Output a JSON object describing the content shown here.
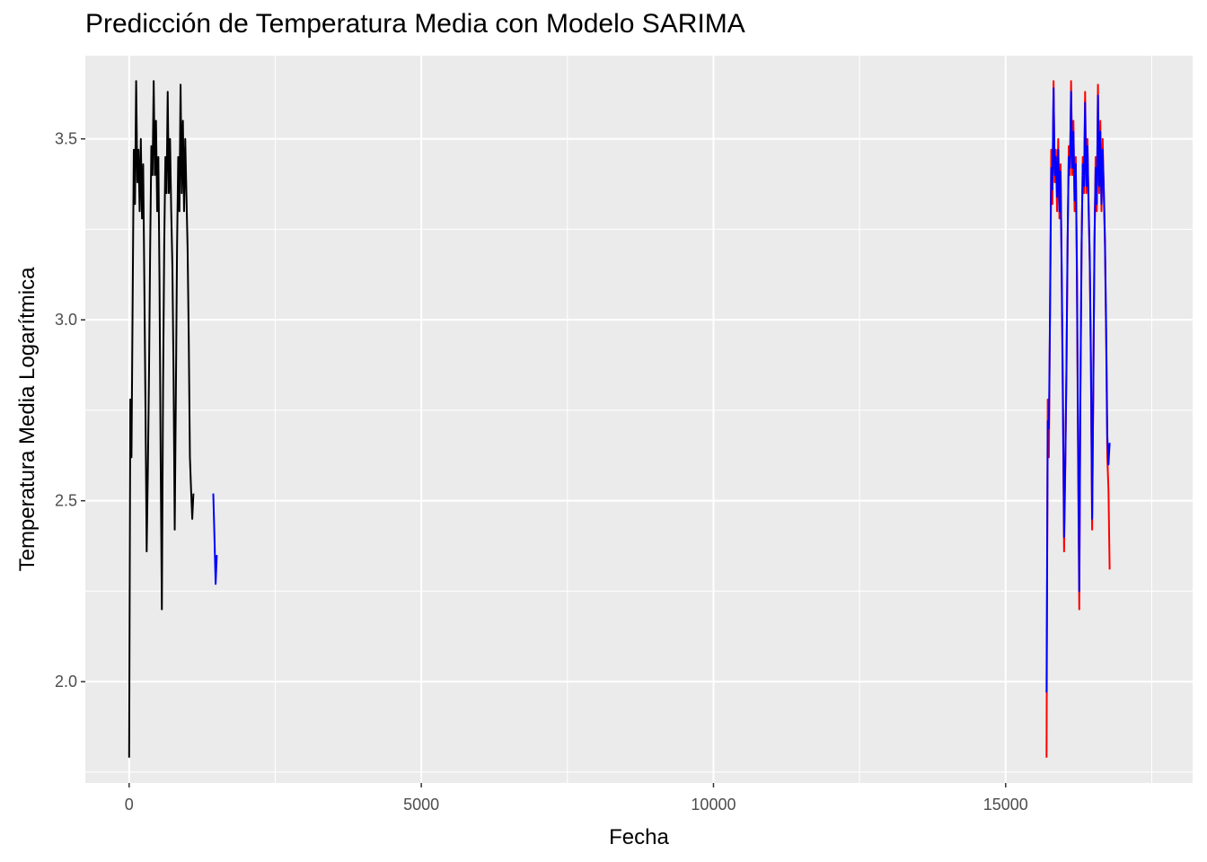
{
  "chart_data": {
    "type": "line",
    "title": "Predicción de Temperatura Media con Modelo SARIMA",
    "xlabel": "Fecha",
    "ylabel": "Temperatura Media Logarítmica",
    "xlim": [
      -750,
      18200
    ],
    "ylim": [
      1.72,
      3.73
    ],
    "x_ticks": [
      0,
      5000,
      10000,
      15000
    ],
    "x_tick_labels": [
      "0",
      "5000",
      "10000",
      "15000"
    ],
    "y_ticks": [
      2.0,
      2.5,
      3.0,
      3.5
    ],
    "y_tick_labels": [
      "2.0",
      "2.5",
      "3.0",
      "3.5"
    ],
    "grid": true,
    "background": "#ebebeb",
    "grid_color": "#ffffff",
    "series": [
      {
        "color": "#000000",
        "x_start": 0,
        "x_step": 20,
        "values": [
          1.79,
          2.78,
          2.62,
          3.05,
          3.47,
          3.32,
          3.66,
          3.38,
          3.47,
          3.3,
          3.5,
          3.28,
          3.43,
          3.1,
          2.75,
          2.36,
          2.58,
          2.85,
          3.2,
          3.48,
          3.4,
          3.66,
          3.4,
          3.55,
          3.3,
          3.45,
          3.1,
          2.6,
          2.2,
          2.8,
          3.2,
          3.45,
          3.35,
          3.63,
          3.35,
          3.5,
          3.3,
          3.15,
          2.85,
          2.42,
          2.8,
          3.2,
          3.45,
          3.3,
          3.65,
          3.35,
          3.55,
          3.3,
          3.5,
          3.35,
          3.2,
          2.95,
          2.62,
          2.53,
          2.45,
          2.52
        ]
      },
      {
        "color": "#0000ff",
        "x_start": 1440,
        "x_step": 20,
        "values": [
          2.52,
          2.4,
          2.27,
          2.35
        ]
      },
      {
        "color": "#ff0000",
        "x_start": 15700,
        "x_step": 20,
        "values": [
          1.79,
          2.78,
          2.62,
          3.05,
          3.47,
          3.32,
          3.66,
          3.38,
          3.47,
          3.3,
          3.5,
          3.28,
          3.43,
          3.1,
          2.75,
          2.36,
          2.58,
          2.85,
          3.2,
          3.48,
          3.4,
          3.66,
          3.4,
          3.55,
          3.3,
          3.45,
          3.1,
          2.6,
          2.2,
          2.8,
          3.2,
          3.45,
          3.35,
          3.63,
          3.35,
          3.5,
          3.3,
          3.15,
          2.85,
          2.42,
          2.8,
          3.2,
          3.45,
          3.3,
          3.65,
          3.35,
          3.55,
          3.3,
          3.5,
          3.35,
          3.2,
          2.95,
          2.62,
          2.53,
          2.31
        ]
      },
      {
        "color": "#0000ff",
        "x_start": 15700,
        "x_step": 20,
        "values": [
          1.97,
          2.72,
          2.7,
          3.02,
          3.42,
          3.36,
          3.64,
          3.4,
          3.45,
          3.34,
          3.47,
          3.3,
          3.41,
          3.13,
          2.8,
          2.4,
          2.6,
          2.86,
          3.22,
          3.45,
          3.42,
          3.63,
          3.42,
          3.52,
          3.33,
          3.43,
          3.14,
          2.66,
          2.25,
          2.82,
          3.21,
          3.43,
          3.37,
          3.6,
          3.37,
          3.48,
          3.32,
          3.17,
          2.88,
          2.45,
          2.82,
          3.22,
          3.42,
          3.32,
          3.62,
          3.37,
          3.52,
          3.32,
          3.47,
          3.36,
          3.22,
          2.98,
          2.68,
          2.6,
          2.66
        ]
      }
    ]
  }
}
